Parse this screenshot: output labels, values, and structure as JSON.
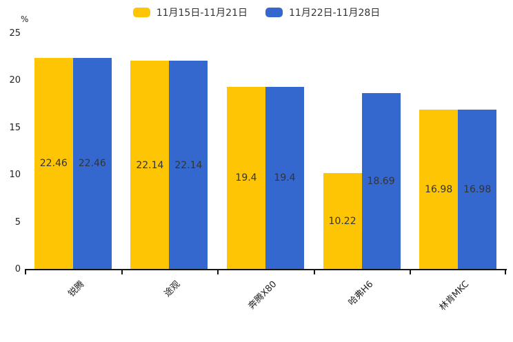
{
  "chart_data": {
    "type": "bar",
    "title": "",
    "ylabel": "%",
    "xlabel": "",
    "ylim": [
      0,
      25
    ],
    "yticks": [
      0,
      5,
      10,
      15,
      20,
      25
    ],
    "grid": false,
    "legend_position": "top",
    "categories": [
      "锐腾",
      "途观",
      "奔腾X80",
      "哈弗H6",
      "林肯MKC"
    ],
    "series": [
      {
        "name": "11月15日-11月21日",
        "color": "#FDC504",
        "values": [
          22.46,
          22.14,
          19.4,
          10.22,
          16.98
        ]
      },
      {
        "name": "11月22日-11月28日",
        "color": "#3568CE",
        "values": [
          22.46,
          22.14,
          19.4,
          18.69,
          16.98
        ]
      }
    ],
    "value_labels_shown": true
  },
  "colors": {
    "background": "#ffffff",
    "axis": "#151515",
    "text": "#222222",
    "bar_label_text": "#333333"
  }
}
